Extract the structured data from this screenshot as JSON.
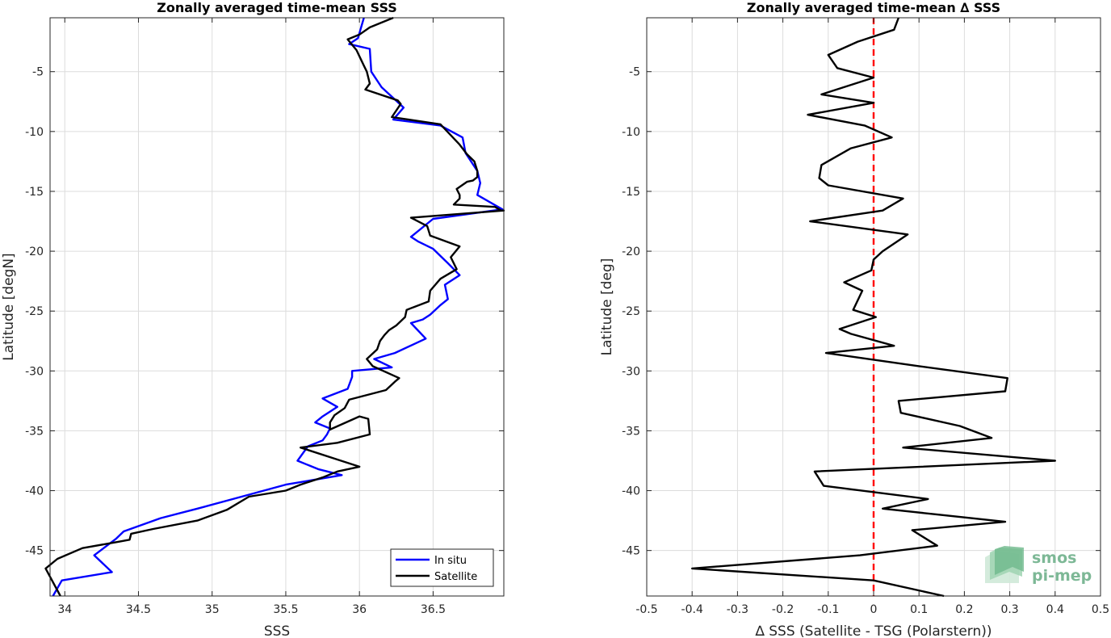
{
  "chart_data": [
    {
      "type": "line",
      "title": "Zonally averaged time-mean SSS",
      "xlabel": "SSS",
      "ylabel": "Latitude [degN]",
      "xlim": [
        33.9,
        36.98
      ],
      "ylim": [
        -48.8,
        -0.5
      ],
      "xticks": [
        34,
        34.5,
        35,
        35.5,
        36,
        36.5
      ],
      "xtick_labels": [
        "34",
        "34.5",
        "35",
        "35.5",
        "36",
        "36.5"
      ],
      "yticks": [
        -5,
        -10,
        -15,
        -20,
        -25,
        -30,
        -35,
        -40,
        -45
      ],
      "ytick_labels": [
        "-5",
        "-10",
        "-15",
        "-20",
        "-25",
        "-30",
        "-35",
        "-40",
        "-45"
      ],
      "grid": true,
      "legend_position": "bottom-right",
      "series": [
        {
          "name": "In situ",
          "color": "#0000ff",
          "x": [
            36.03,
            35.99,
            35.93,
            36.07,
            36.08,
            36.15,
            36.3,
            36.23,
            36.55,
            36.7,
            36.72,
            36.8,
            36.82,
            36.8,
            36.97,
            36.5,
            36.35,
            36.4,
            36.5,
            36.6,
            36.68,
            36.58,
            36.6,
            36.55,
            36.48,
            36.43,
            36.35,
            36.45,
            36.24,
            36.1,
            36.22,
            35.95,
            35.95,
            35.92,
            35.75,
            35.85,
            35.75,
            35.7,
            35.8,
            35.78,
            35.75,
            35.65,
            35.58,
            35.72,
            35.88,
            35.5,
            35.2,
            34.9,
            34.65,
            34.4,
            34.35,
            34.2,
            34.32,
            33.98,
            33.92
          ],
          "y": [
            -0.5,
            -2.2,
            -2.7,
            -3.1,
            -5.0,
            -6.3,
            -8.0,
            -9.0,
            -9.5,
            -10.5,
            -11.8,
            -13.3,
            -14.3,
            -15.3,
            -16.5,
            -17.3,
            -18.8,
            -19.2,
            -19.8,
            -21.0,
            -22.0,
            -22.8,
            -24.0,
            -24.5,
            -25.3,
            -25.7,
            -26.0,
            -27.3,
            -28.5,
            -29.0,
            -29.7,
            -30.0,
            -30.5,
            -31.5,
            -32.3,
            -33.0,
            -33.8,
            -34.3,
            -34.8,
            -35.3,
            -35.8,
            -36.3,
            -37.5,
            -38.2,
            -38.7,
            -39.5,
            -40.5,
            -41.5,
            -42.3,
            -43.4,
            -44.0,
            -45.4,
            -46.8,
            -47.5,
            -48.8
          ]
        },
        {
          "name": "Satellite",
          "color": "#000000",
          "x": [
            36.23,
            36.07,
            36.0,
            35.92,
            35.98,
            36.03,
            36.05,
            36.07,
            36.04,
            36.26,
            36.28,
            36.22,
            36.55,
            36.68,
            36.73,
            36.78,
            36.8,
            36.8,
            36.77,
            36.73,
            36.66,
            36.68,
            36.68,
            36.64,
            36.92,
            36.96,
            36.98,
            36.35,
            36.46,
            36.48,
            36.68,
            36.62,
            36.66,
            36.55,
            36.48,
            36.47,
            36.32,
            36.31,
            36.25,
            36.2,
            36.17,
            36.14,
            36.12,
            36.05,
            36.09,
            36.27,
            36.24,
            36.18,
            35.93,
            35.9,
            35.83,
            35.8,
            35.8,
            36.0,
            36.06,
            36.07,
            35.85,
            35.6,
            35.85,
            36.0,
            35.85,
            35.75,
            35.6,
            35.5,
            35.25,
            35.1,
            34.9,
            34.6,
            34.45,
            34.44,
            34.35,
            34.12,
            33.95,
            33.87,
            33.97
          ],
          "y": [
            -0.5,
            -1.3,
            -1.9,
            -2.3,
            -3.2,
            -4.5,
            -5.0,
            -6.0,
            -6.5,
            -7.4,
            -7.7,
            -8.8,
            -9.4,
            -11.1,
            -11.9,
            -12.5,
            -13.3,
            -13.8,
            -14.1,
            -14.2,
            -14.8,
            -15.3,
            -15.6,
            -16.1,
            -16.3,
            -16.6,
            -16.6,
            -17.2,
            -17.9,
            -18.7,
            -19.6,
            -20.5,
            -21.5,
            -22.3,
            -23.3,
            -24.2,
            -24.9,
            -25.5,
            -26.2,
            -26.6,
            -27.0,
            -27.5,
            -28.2,
            -29.0,
            -29.6,
            -30.6,
            -30.9,
            -31.6,
            -32.4,
            -33.1,
            -33.7,
            -34.3,
            -34.9,
            -33.8,
            -34.0,
            -35.3,
            -36.0,
            -36.4,
            -37.4,
            -38.0,
            -38.4,
            -38.9,
            -39.5,
            -40.0,
            -40.5,
            -41.6,
            -42.5,
            -43.2,
            -43.6,
            -44.1,
            -44.3,
            -44.8,
            -45.7,
            -46.5,
            -48.8
          ]
        }
      ]
    },
    {
      "type": "line",
      "title": "Zonally averaged time-mean ∆ SSS",
      "xlabel": "∆ SSS (Satellite - TSG (Polarstern))",
      "ylabel": "Latitude [deg]",
      "xlim": [
        -0.5,
        0.5
      ],
      "ylim": [
        -48.8,
        -0.5
      ],
      "xticks": [
        -0.5,
        -0.4,
        -0.3,
        -0.2,
        -0.1,
        0,
        0.1,
        0.2,
        0.3,
        0.4,
        0.5
      ],
      "xtick_labels": [
        "-0.5",
        "-0.4",
        "-0.3",
        "-0.2",
        "-0.1",
        "0",
        "0.1",
        "0.2",
        "0.3",
        "0.4",
        "0.5"
      ],
      "yticks": [
        -5,
        -10,
        -15,
        -20,
        -25,
        -30,
        -35,
        -40,
        -45
      ],
      "ytick_labels": [
        "-5",
        "-10",
        "-15",
        "-20",
        "-25",
        "-30",
        "-35",
        "-40",
        "-45"
      ],
      "grid": true,
      "zero_line": {
        "x": 0,
        "color": "#ff0000",
        "style": "dashed"
      },
      "series": [
        {
          "name": "",
          "color": "#000000",
          "x": [
            0.055,
            0.045,
            -0.035,
            -0.1,
            -0.08,
            0.0,
            -0.115,
            0.0,
            -0.145,
            -0.02,
            0.04,
            -0.05,
            -0.115,
            -0.12,
            -0.1,
            0.065,
            0.02,
            -0.14,
            0.075,
            0.02,
            0.0,
            -0.005,
            -0.065,
            -0.025,
            -0.045,
            0.005,
            -0.075,
            -0.05,
            0.045,
            -0.105,
            0.1,
            0.295,
            0.29,
            0.055,
            0.06,
            0.19,
            0.26,
            0.065,
            0.4,
            -0.13,
            -0.11,
            0.12,
            0.02,
            0.29,
            0.085,
            0.14,
            -0.03,
            -0.4,
            0.0,
            0.155
          ],
          "y": [
            -0.5,
            -1.5,
            -2.5,
            -3.6,
            -4.7,
            -5.5,
            -6.9,
            -7.6,
            -8.6,
            -9.5,
            -10.5,
            -11.4,
            -12.8,
            -13.9,
            -14.5,
            -15.6,
            -16.6,
            -17.5,
            -18.6,
            -20.0,
            -20.7,
            -21.6,
            -22.6,
            -23.3,
            -24.9,
            -25.5,
            -26.5,
            -26.9,
            -27.9,
            -28.5,
            -29.6,
            -30.6,
            -31.7,
            -32.5,
            -33.5,
            -34.6,
            -35.6,
            -36.4,
            -37.5,
            -38.4,
            -39.6,
            -40.7,
            -41.5,
            -42.6,
            -43.3,
            -44.6,
            -45.4,
            -46.5,
            -47.5,
            -48.8
          ]
        }
      ]
    }
  ],
  "legend": {
    "items": [
      {
        "label": "In situ",
        "color": "#0000ff"
      },
      {
        "label": "Satellite",
        "color": "#000000"
      }
    ]
  },
  "logo": {
    "line1": "smos",
    "line2": "pi-mep"
  }
}
